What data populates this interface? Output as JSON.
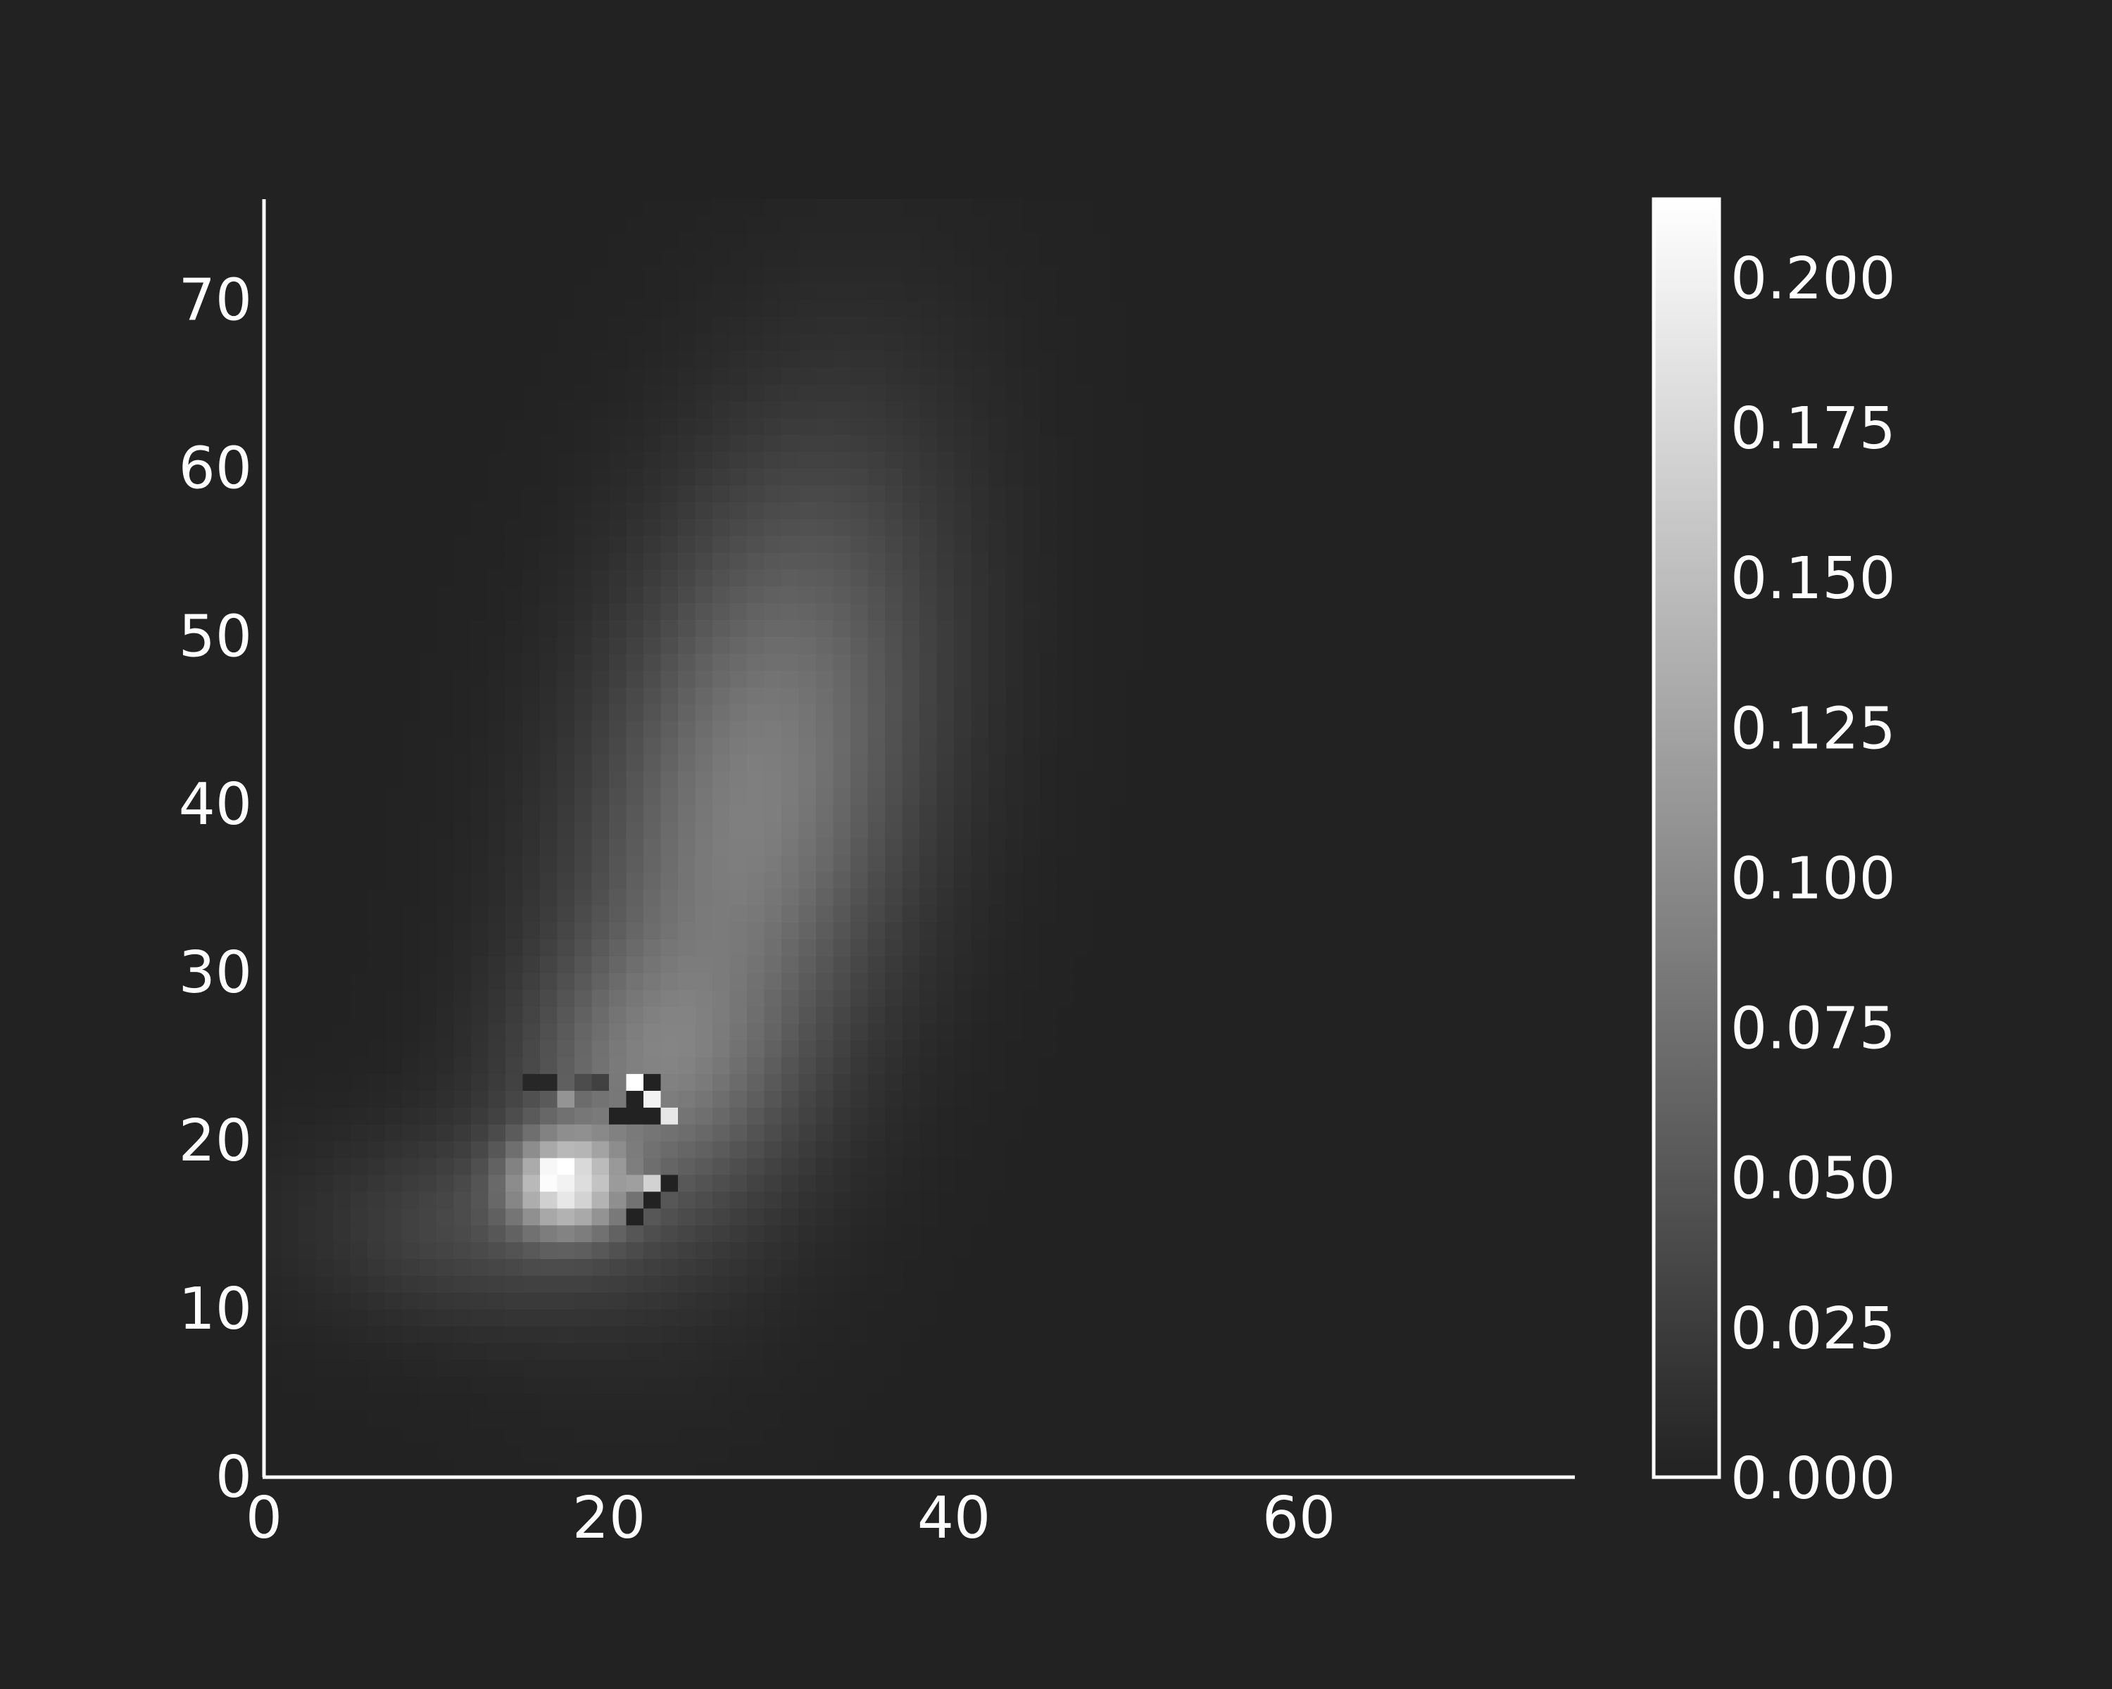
{
  "chart_data": {
    "type": "heatmap",
    "title": "",
    "xlabel": "",
    "ylabel": "",
    "grid_size": [
      76,
      76
    ],
    "xlim": [
      0,
      76
    ],
    "ylim": [
      0,
      76
    ],
    "x_ticks": [
      {
        "value": 0,
        "label": "0"
      },
      {
        "value": 20,
        "label": "20"
      },
      {
        "value": 40,
        "label": "40"
      },
      {
        "value": 60,
        "label": "60"
      }
    ],
    "y_ticks": [
      {
        "value": 0,
        "label": "0"
      },
      {
        "value": 10,
        "label": "10"
      },
      {
        "value": 20,
        "label": "20"
      },
      {
        "value": 30,
        "label": "30"
      },
      {
        "value": 40,
        "label": "40"
      },
      {
        "value": 50,
        "label": "50"
      },
      {
        "value": 60,
        "label": "60"
      },
      {
        "value": 70,
        "label": "70"
      }
    ],
    "colorbar": {
      "range": [
        0,
        0.213
      ],
      "colormap": [
        "#222222",
        "#ffffff"
      ],
      "ticks": [
        {
          "value": 0.0,
          "label": "0.000"
        },
        {
          "value": 0.025,
          "label": "0.025"
        },
        {
          "value": 0.05,
          "label": "0.050"
        },
        {
          "value": 0.075,
          "label": "0.075"
        },
        {
          "value": 0.1,
          "label": "0.100"
        },
        {
          "value": 0.125,
          "label": "0.125"
        },
        {
          "value": 0.15,
          "label": "0.150"
        },
        {
          "value": 0.175,
          "label": "0.175"
        },
        {
          "value": 0.2,
          "label": "0.200"
        }
      ]
    },
    "components": [
      {
        "cx": 28.5,
        "cy": 40,
        "sx": 6.5,
        "sy": 14,
        "amp": 0.09,
        "tilt": 0.18
      },
      {
        "cx": 22,
        "cy": 24,
        "sx": 5,
        "sy": 5,
        "amp": 0.05,
        "tilt": 0
      },
      {
        "cx": 13,
        "cy": 15,
        "sx": 7,
        "sy": 4,
        "amp": 0.035,
        "tilt": 0
      },
      {
        "cx": 17.5,
        "cy": 17.5,
        "sx": 2.2,
        "sy": 2.0,
        "amp": 0.15,
        "tilt": 0
      }
    ],
    "special_cells": [
      {
        "x": 16,
        "y": 18,
        "v": 0.205
      },
      {
        "x": 17,
        "y": 18,
        "v": 0.213
      },
      {
        "x": 16,
        "y": 17,
        "v": 0.21
      },
      {
        "x": 17,
        "y": 17,
        "v": 0.2
      },
      {
        "x": 17,
        "y": 16,
        "v": 0.19
      },
      {
        "x": 18,
        "y": 17,
        "v": 0.18
      },
      {
        "x": 21,
        "y": 23,
        "v": 0.213
      },
      {
        "x": 22,
        "y": 22,
        "v": 0.2
      },
      {
        "x": 23,
        "y": 21,
        "v": 0.19
      },
      {
        "x": 22,
        "y": 23,
        "v": 0.0
      },
      {
        "x": 21,
        "y": 22,
        "v": 0.0
      },
      {
        "x": 21,
        "y": 21,
        "v": 0.0
      },
      {
        "x": 20,
        "y": 21,
        "v": 0.0
      },
      {
        "x": 22,
        "y": 21,
        "v": 0.0
      },
      {
        "x": 23,
        "y": 17,
        "v": 0.0
      },
      {
        "x": 22,
        "y": 16,
        "v": 0.0
      },
      {
        "x": 21,
        "y": 15,
        "v": 0.0
      },
      {
        "x": 15,
        "y": 23,
        "v": 0.005
      },
      {
        "x": 16,
        "y": 23,
        "v": 0.005
      },
      {
        "x": 17,
        "y": 22,
        "v": 0.11
      },
      {
        "x": 18,
        "y": 23,
        "v": 0.04
      },
      {
        "x": 19,
        "y": 23,
        "v": 0.03
      },
      {
        "x": 22,
        "y": 17,
        "v": 0.17
      },
      {
        "x": 21,
        "y": 17,
        "v": 0.12
      }
    ]
  }
}
